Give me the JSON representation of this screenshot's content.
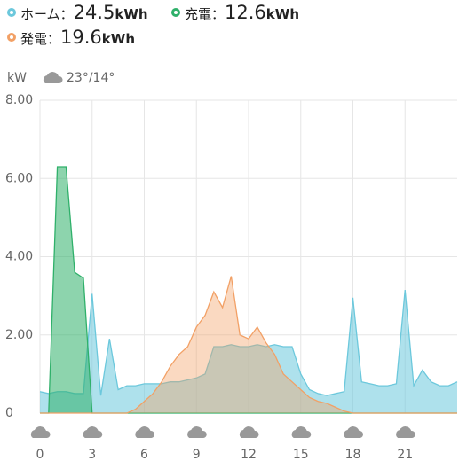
{
  "chart_data": {
    "type": "area",
    "legend_separator": "：",
    "y_axis_label": "kW",
    "weather": "23°/14°",
    "x": [
      0,
      0.5,
      1,
      1.5,
      2,
      2.5,
      3,
      3.5,
      4,
      4.5,
      5,
      5.5,
      6,
      6.5,
      7,
      7.5,
      8,
      8.5,
      9,
      9.5,
      10,
      10.5,
      11,
      11.5,
      12,
      12.5,
      13,
      13.5,
      14,
      14.5,
      15,
      15.5,
      16,
      16.5,
      17,
      17.5,
      18,
      18.5,
      19,
      19.5,
      20,
      20.5,
      21,
      21.5,
      22,
      22.5,
      23,
      23.5,
      24
    ],
    "series": [
      {
        "name": "ホーム",
        "total": 24.5,
        "total_unit": "kWh",
        "color": "#6cc8dc",
        "values": [
          0.55,
          0.5,
          0.55,
          0.55,
          0.5,
          0.5,
          3.05,
          0.45,
          1.9,
          0.6,
          0.7,
          0.7,
          0.75,
          0.75,
          0.75,
          0.8,
          0.8,
          0.85,
          0.9,
          1.0,
          1.7,
          1.7,
          1.75,
          1.7,
          1.7,
          1.75,
          1.7,
          1.75,
          1.7,
          1.7,
          1.0,
          0.6,
          0.5,
          0.45,
          0.5,
          0.55,
          2.95,
          0.8,
          0.75,
          0.7,
          0.7,
          0.75,
          3.15,
          0.7,
          1.1,
          0.8,
          0.7,
          0.7,
          0.8
        ]
      },
      {
        "name": "充電",
        "total": 12.6,
        "total_unit": "kWh",
        "color": "#2fb06a",
        "values": [
          0,
          0,
          6.3,
          6.3,
          3.6,
          3.45,
          0,
          0,
          0,
          0,
          0,
          0,
          0,
          0,
          0,
          0,
          0,
          0,
          0,
          0,
          0,
          0,
          0,
          0,
          0,
          0,
          0,
          0,
          0,
          0,
          0,
          0,
          0,
          0,
          0,
          0,
          0,
          0,
          0,
          0,
          0,
          0,
          0,
          0,
          0,
          0,
          0,
          0,
          0
        ]
      },
      {
        "name": "発電",
        "total": 19.6,
        "total_unit": "kWh",
        "color": "#f2a065",
        "values": [
          0,
          0,
          0,
          0,
          0,
          0,
          0,
          0,
          0,
          0,
          0,
          0.1,
          0.3,
          0.5,
          0.8,
          1.2,
          1.5,
          1.7,
          2.2,
          2.5,
          3.1,
          2.7,
          3.5,
          2.0,
          1.9,
          2.2,
          1.8,
          1.5,
          1.0,
          0.8,
          0.6,
          0.4,
          0.3,
          0.25,
          0.15,
          0.05,
          0,
          0,
          0,
          0,
          0,
          0,
          0,
          0,
          0,
          0,
          0,
          0,
          0
        ]
      }
    ],
    "xlim": [
      0,
      24
    ],
    "xticks": [
      0,
      3,
      6,
      9,
      12,
      15,
      18,
      21
    ],
    "ylim": [
      0,
      8
    ],
    "yticks": [
      0,
      {
        "value": 2,
        "label": "2.00"
      },
      {
        "value": 4,
        "label": "4.00"
      },
      {
        "value": 6,
        "label": "6.00"
      },
      {
        "value": 8,
        "label": "8.00"
      }
    ],
    "grid": true
  }
}
